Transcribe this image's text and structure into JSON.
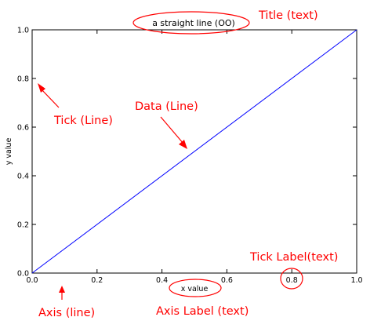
{
  "chart_data": {
    "type": "line",
    "title": "a straight line (OO)",
    "xlabel": "x value",
    "ylabel": "y value",
    "xlim": [
      0.0,
      1.0
    ],
    "ylim": [
      0.0,
      1.0
    ],
    "xticks": [
      "0.0",
      "0.2",
      "0.4",
      "0.6",
      "0.8",
      "1.0"
    ],
    "yticks": [
      "0.0",
      "0.2",
      "0.4",
      "0.6",
      "0.8",
      "1.0"
    ],
    "grid": false,
    "series": [
      {
        "x": [
          0.0,
          1.0
        ],
        "y": [
          0.0,
          1.0
        ],
        "color": "#0000ff"
      }
    ]
  },
  "annotations": {
    "color": "#ff0000",
    "title": "Title (text)",
    "tick": "Tick (Line)",
    "data": "Data (Line)",
    "tick_label": "Tick Label(text)",
    "axis": "Axis (line)",
    "axis_label": "Axis Label (text)"
  }
}
